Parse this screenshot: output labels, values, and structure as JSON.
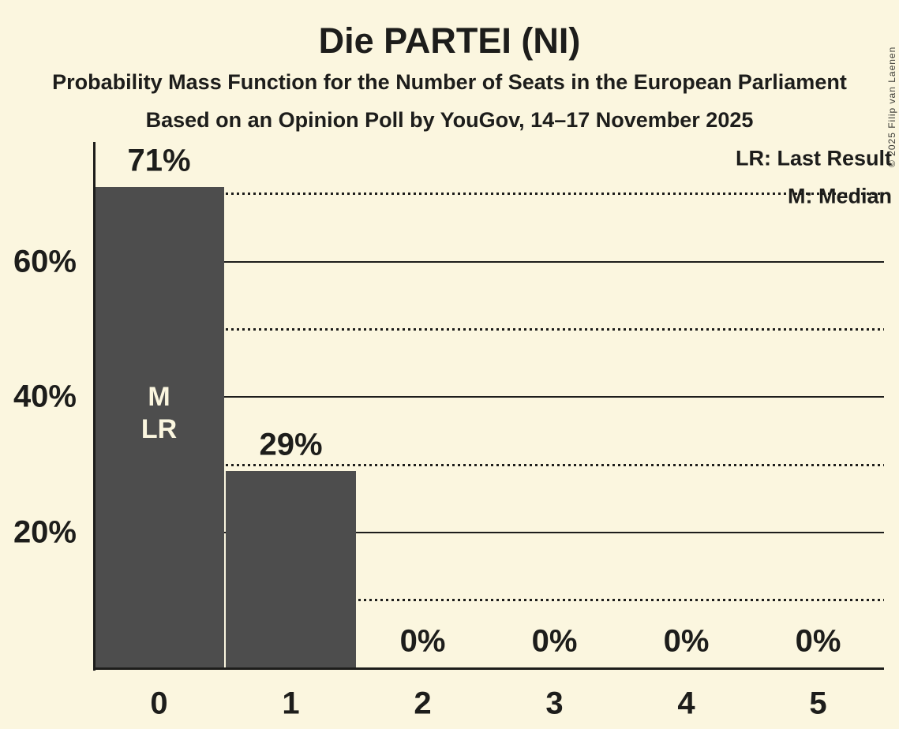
{
  "header": {
    "title": "Die PARTEI (NI)",
    "subtitle1": "Probability Mass Function for the Number of Seats in the European Parliament",
    "subtitle2": "Based on an Opinion Poll by YouGov, 14–17 November 2025",
    "copyright": "© 2025 Filip van Laenen"
  },
  "legend": {
    "last_result": "LR: Last Result",
    "median": "M: Median"
  },
  "chart_data": {
    "type": "bar",
    "title": "Die PARTEI (NI)",
    "categories": [
      "0",
      "1",
      "2",
      "3",
      "4",
      "5"
    ],
    "values": [
      71,
      29,
      0,
      0,
      0,
      0
    ],
    "bar_labels": [
      "71%",
      "29%",
      "0%",
      "0%",
      "0%",
      "0%"
    ],
    "xlabel": "",
    "ylabel": "",
    "ylim": [
      0,
      78
    ],
    "y_axis_ticks": [
      {
        "pct": 20,
        "label": "20%"
      },
      {
        "pct": 40,
        "label": "40%"
      },
      {
        "pct": 60,
        "label": "60%"
      }
    ],
    "solid_gridlines_pct": [
      20,
      40,
      60
    ],
    "dotted_gridlines_pct": [
      10,
      30,
      50
    ],
    "median_line_pct": 70,
    "annotations": {
      "median_marker": "M",
      "last_result_marker": "LR",
      "marked_bar_index": 0
    },
    "legend_position": "top-right",
    "grid": "horizontal",
    "colors": {
      "background": "#FBF6DF",
      "bar": "#4D4D4D",
      "ink": "#1D1D1B",
      "bar_text": "#FBF6DF"
    }
  }
}
